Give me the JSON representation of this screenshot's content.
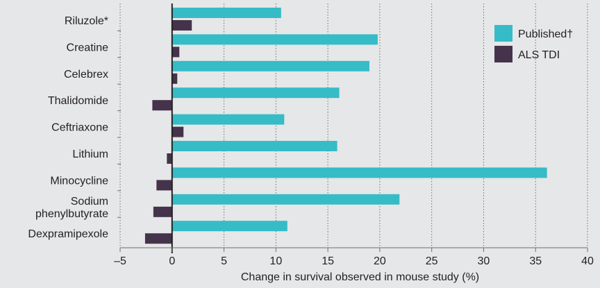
{
  "chart_data": {
    "type": "bar",
    "orientation": "horizontal",
    "title": "",
    "xlabel": "Change in survival observed in mouse study (%)",
    "ylabel": "",
    "xlim": [
      -5,
      40
    ],
    "x_ticks": [
      -5,
      0,
      5,
      10,
      15,
      20,
      25,
      30,
      35,
      40
    ],
    "x_tick_labels": [
      "–5",
      "0",
      "5",
      "10",
      "15",
      "20",
      "25",
      "30",
      "35",
      "40"
    ],
    "grid": "vertical dotted",
    "legend_position": "top-right",
    "categories": [
      [
        "Riluzole*"
      ],
      [
        "Creatine"
      ],
      [
        "Celebrex"
      ],
      [
        "Thalidomide"
      ],
      [
        "Ceftriaxone"
      ],
      [
        "Lithium"
      ],
      [
        "Minocycline"
      ],
      [
        "Sodium",
        "phenylbutyrate"
      ],
      [
        "Dexpramipexole"
      ]
    ],
    "series": [
      {
        "name": "Published†",
        "color": "#36bcc6",
        "values": [
          10.5,
          19.8,
          19.0,
          16.1,
          10.8,
          15.9,
          36.1,
          21.9,
          11.1
        ]
      },
      {
        "name": "ALS TDI",
        "color": "#45334b",
        "values": [
          1.9,
          0.7,
          0.5,
          -1.9,
          1.1,
          -0.5,
          -1.5,
          -1.8,
          -2.6
        ]
      }
    ]
  }
}
